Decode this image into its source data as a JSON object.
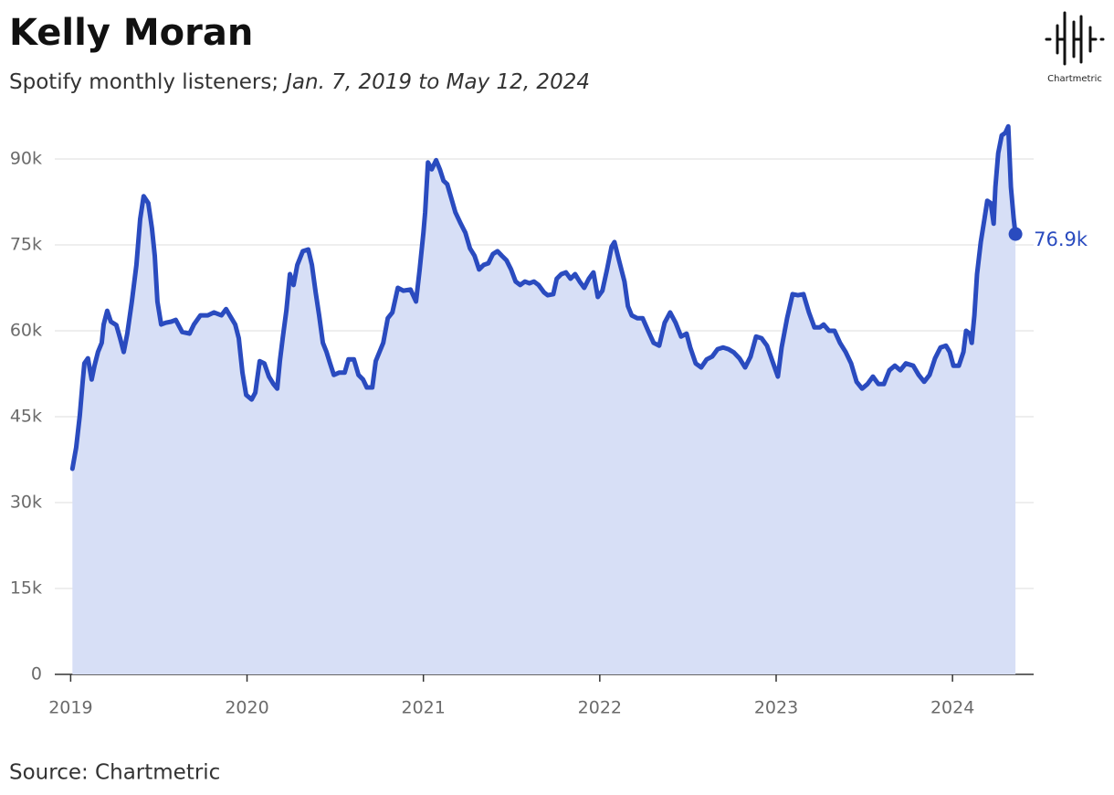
{
  "chart_data": {
    "type": "area",
    "title": "Kelly Moran",
    "subtitle": "Spotify monthly listeners;",
    "subtitle_range": "Jan. 7, 2019 to May 12, 2024",
    "source": "Source: Chartmetric",
    "logo": "Chartmetric",
    "color": "#2a4bbf",
    "fill": "#d7dff6",
    "grid": true,
    "xlim": [
      2018.91,
      2024.46
    ],
    "xticks": [
      2019,
      2020,
      2021,
      2022,
      2023,
      2024
    ],
    "ylim": [
      0,
      90000
    ],
    "yticks": [
      {
        "value": 0,
        "label": "0"
      },
      {
        "value": 15000,
        "label": "15k"
      },
      {
        "value": 30000,
        "label": "30k"
      },
      {
        "value": 45000,
        "label": "45k"
      },
      {
        "value": 60000,
        "label": "60k"
      },
      {
        "value": 75000,
        "label": "75k"
      },
      {
        "value": 90000,
        "label": "90k"
      }
    ],
    "end_label": "76.9k",
    "x": [
      2019.01,
      2019.031,
      2019.052,
      2019.067,
      2019.078,
      2019.098,
      2019.119,
      2019.135,
      2019.155,
      2019.176,
      2019.187,
      2019.207,
      2019.228,
      2019.259,
      2019.28,
      2019.301,
      2019.321,
      2019.347,
      2019.373,
      2019.394,
      2019.414,
      2019.44,
      2019.461,
      2019.477,
      2019.492,
      2019.513,
      2019.539,
      2019.57,
      2019.596,
      2019.632,
      2019.674,
      2019.699,
      2019.736,
      2019.777,
      2019.813,
      2019.855,
      2019.881,
      2019.902,
      2019.933,
      2019.953,
      2019.974,
      2019.995,
      2020.026,
      2020.047,
      2020.072,
      2020.098,
      2020.124,
      2020.15,
      2020.171,
      2020.186,
      2020.202,
      2020.223,
      2020.243,
      2020.264,
      2020.285,
      2020.316,
      2020.347,
      2020.368,
      2020.389,
      2020.409,
      2020.43,
      2020.451,
      2020.471,
      2020.492,
      2020.523,
      2020.554,
      2020.575,
      2020.606,
      2020.632,
      2020.658,
      2020.679,
      2020.71,
      2020.73,
      2020.751,
      2020.772,
      2020.798,
      2020.824,
      2020.855,
      2020.886,
      2020.927,
      2020.958,
      2020.979,
      2021.0,
      2021.01,
      2021.026,
      2021.047,
      2021.072,
      2021.093,
      2021.114,
      2021.135,
      2021.155,
      2021.181,
      2021.212,
      2021.238,
      2021.264,
      2021.29,
      2021.316,
      2021.342,
      2021.368,
      2021.394,
      2021.42,
      2021.445,
      2021.471,
      2021.497,
      2021.523,
      2021.549,
      2021.575,
      2021.601,
      2021.627,
      2021.653,
      2021.684,
      2021.705,
      2021.736,
      2021.756,
      2021.782,
      2021.808,
      2021.834,
      2021.86,
      2021.886,
      2021.912,
      2021.938,
      2021.964,
      2021.989,
      2022.015,
      2022.041,
      2022.067,
      2022.083,
      2022.109,
      2022.14,
      2022.16,
      2022.181,
      2022.212,
      2022.243,
      2022.274,
      2022.305,
      2022.337,
      2022.368,
      2022.399,
      2022.43,
      2022.461,
      2022.492,
      2022.513,
      2022.544,
      2022.575,
      2022.606,
      2022.637,
      2022.668,
      2022.699,
      2022.73,
      2022.761,
      2022.792,
      2022.824,
      2022.855,
      2022.886,
      2022.917,
      2022.948,
      2022.979,
      2023.01,
      2023.031,
      2023.062,
      2023.093,
      2023.124,
      2023.155,
      2023.186,
      2023.217,
      2023.248,
      2023.269,
      2023.3,
      2023.331,
      2023.362,
      2023.394,
      2023.425,
      2023.456,
      2023.487,
      2023.518,
      2023.549,
      2023.58,
      2023.611,
      2023.642,
      2023.673,
      2023.704,
      2023.735,
      2023.777,
      2023.808,
      2023.839,
      2023.87,
      2023.901,
      2023.932,
      2023.963,
      2023.984,
      2024.005,
      2024.036,
      2024.062,
      2024.077,
      2024.098,
      2024.109,
      2024.124,
      2024.139,
      2024.16,
      2024.181,
      2024.197,
      2024.217,
      2024.233,
      2024.243,
      2024.259,
      2024.279,
      2024.3,
      2024.316,
      2024.331,
      2024.347,
      2024.357
    ],
    "values": [
      35900,
      39600,
      45200,
      50700,
      54300,
      55200,
      51500,
      53900,
      56300,
      57900,
      61100,
      63500,
      61600,
      61000,
      58700,
      56300,
      59500,
      65100,
      71500,
      79500,
      83500,
      82300,
      77900,
      73100,
      65100,
      61100,
      61400,
      61600,
      61900,
      59800,
      59500,
      61100,
      62700,
      62700,
      63200,
      62700,
      63800,
      62700,
      61100,
      58700,
      52700,
      48800,
      48000,
      49200,
      54700,
      54300,
      52000,
      50700,
      49900,
      54700,
      58700,
      63500,
      69900,
      68000,
      71500,
      73900,
      74200,
      71500,
      66700,
      62700,
      57900,
      56300,
      54300,
      52300,
      52700,
      52700,
      55000,
      55000,
      52300,
      51500,
      50100,
      50100,
      54700,
      56300,
      57900,
      62200,
      63200,
      67500,
      67000,
      67200,
      65100,
      70700,
      77100,
      80700,
      89400,
      88200,
      89800,
      88200,
      86200,
      85600,
      83500,
      80700,
      78700,
      77100,
      74400,
      73100,
      70700,
      71500,
      71800,
      73400,
      73900,
      73100,
      72300,
      70700,
      68600,
      68000,
      68600,
      68300,
      68600,
      68000,
      66700,
      66200,
      66400,
      69100,
      69900,
      70200,
      69100,
      69900,
      68600,
      67500,
      69100,
      70200,
      65900,
      67000,
      70700,
      74700,
      75500,
      72300,
      68600,
      64300,
      62700,
      62200,
      62200,
      60000,
      57900,
      57400,
      61400,
      63200,
      61400,
      59000,
      59500,
      57100,
      54300,
      53600,
      55000,
      55500,
      56800,
      57100,
      56800,
      56200,
      55200,
      53600,
      55500,
      59000,
      58700,
      57400,
      54700,
      52000,
      57100,
      62200,
      66400,
      66200,
      66400,
      63200,
      60600,
      60600,
      61100,
      60000,
      60000,
      57900,
      56300,
      54300,
      51100,
      49900,
      50700,
      52000,
      50700,
      50700,
      53100,
      53900,
      53100,
      54300,
      53900,
      52300,
      51100,
      52300,
      55200,
      57100,
      57400,
      56300,
      53900,
      53900,
      56300,
      60000,
      59500,
      57900,
      62700,
      69900,
      75500,
      79500,
      82700,
      82300,
      78700,
      85100,
      91000,
      94100,
      94600,
      95700,
      85100,
      79500,
      76900
    ]
  }
}
